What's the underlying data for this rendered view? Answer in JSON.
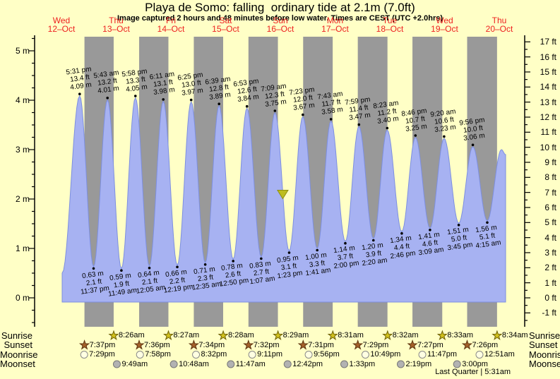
{
  "title": "Playa de Somo: falling  ordinary tide at 2.1m (7.0ft)",
  "subtitle": "Image captured 2 hours and 48 minutes before low water. Times are CEST (UTC +2.0hrs)",
  "colors": {
    "background": "#ffffc6",
    "day_band": "#ffffc6",
    "night_band": "#999999",
    "tide_fill": "#a7b2f2",
    "tide_stroke": "#7d8fe0",
    "day_label_red": "#ee2020",
    "axis": "#000000",
    "marker_fill": "#bdbd1e",
    "marker_stroke": "#8f8f10",
    "sunrise_star_fill": "#d0c01c",
    "sunrise_star_stroke": "#6e6008",
    "sunset_star_fill": "#a4602a",
    "sunset_star_stroke": "#5e3510",
    "moonrise_circle_fill": "#ffffe2",
    "moonrise_circle_stroke": "#8a8a8a",
    "moonset_circle_fill": "#b2b2b2",
    "moonset_circle_stroke": "#787878"
  },
  "days": [
    {
      "day": "Wed",
      "date": "12–Oct"
    },
    {
      "day": "Thu",
      "date": "13–Oct"
    },
    {
      "day": "Fri",
      "date": "14–Oct"
    },
    {
      "day": "Sat",
      "date": "15–Oct"
    },
    {
      "day": "Sun",
      "date": "16–Oct"
    },
    {
      "day": "Mon",
      "date": "17–Oct"
    },
    {
      "day": "Tue",
      "date": "18–Oct"
    },
    {
      "day": "Wed",
      "date": "19–Oct"
    },
    {
      "day": "Thu",
      "date": "20–Oct"
    }
  ],
  "chart_data": {
    "type": "area",
    "title": "Playa de Somo: falling  ordinary tide at 2.1m (7.0ft)",
    "y_axis_left": {
      "unit": "m",
      "major_ticks": [
        0,
        1,
        2,
        3,
        4,
        5
      ],
      "minor_step": 0.25,
      "min": -0.5,
      "max": 5.25
    },
    "y_axis_right": {
      "unit": "ft",
      "major_tick_min": -1,
      "major_tick_max": 17,
      "minor_step": 0.5
    },
    "current_marker": {
      "height_m": 2.1,
      "day": 4,
      "time": "10:35 am"
    },
    "extremes": [
      {
        "kind": "high",
        "day": 0,
        "time": "5:31 pm",
        "height_m": 4.09,
        "ft_label": "13.4 ft",
        "m_label": "4.09 m"
      },
      {
        "kind": "low",
        "day": 0,
        "time": "11:37 pm",
        "height_m": 0.63,
        "ft_label": "2.1 ft",
        "m_label": "0.63 m"
      },
      {
        "kind": "high",
        "day": 1,
        "time": "5:43 am",
        "height_m": 4.01,
        "ft_label": "13.2 ft",
        "m_label": "4.01 m"
      },
      {
        "kind": "low",
        "day": 1,
        "time": "11:49 am",
        "height_m": 0.59,
        "ft_label": "1.9 ft",
        "m_label": "0.59 m"
      },
      {
        "kind": "high",
        "day": 1,
        "time": "5:58 pm",
        "height_m": 4.05,
        "ft_label": "13.3 ft",
        "m_label": "4.05 m"
      },
      {
        "kind": "low",
        "day": 2,
        "time": "12:05 am",
        "height_m": 0.64,
        "ft_label": "2.1 ft",
        "m_label": "0.64 m"
      },
      {
        "kind": "high",
        "day": 2,
        "time": "6:11 am",
        "height_m": 3.98,
        "ft_label": "13.1 ft",
        "m_label": "3.98 m"
      },
      {
        "kind": "low",
        "day": 2,
        "time": "12:19 pm",
        "height_m": 0.66,
        "ft_label": "2.2 ft",
        "m_label": "0.66 m"
      },
      {
        "kind": "high",
        "day": 2,
        "time": "6:25 pm",
        "height_m": 3.97,
        "ft_label": "13.0 ft",
        "m_label": "3.97 m"
      },
      {
        "kind": "low",
        "day": 3,
        "time": "12:35 am",
        "height_m": 0.71,
        "ft_label": "2.3 ft",
        "m_label": "0.71 m"
      },
      {
        "kind": "high",
        "day": 3,
        "time": "6:39 am",
        "height_m": 3.89,
        "ft_label": "12.8 ft",
        "m_label": "3.89 m"
      },
      {
        "kind": "low",
        "day": 3,
        "time": "12:50 pm",
        "height_m": 0.78,
        "ft_label": "2.6 ft",
        "m_label": "0.78 m"
      },
      {
        "kind": "high",
        "day": 3,
        "time": "6:53 pm",
        "height_m": 3.84,
        "ft_label": "12.6 ft",
        "m_label": "3.84 m"
      },
      {
        "kind": "low",
        "day": 4,
        "time": "1:07 am",
        "height_m": 0.83,
        "ft_label": "2.7 ft",
        "m_label": "0.83 m"
      },
      {
        "kind": "high",
        "day": 4,
        "time": "7:09 am",
        "height_m": 3.75,
        "ft_label": "12.3 ft",
        "m_label": "3.75 m"
      },
      {
        "kind": "low",
        "day": 4,
        "time": "1:23 pm",
        "height_m": 0.95,
        "ft_label": "3.1 ft",
        "m_label": "0.95 m"
      },
      {
        "kind": "high",
        "day": 4,
        "time": "7:23 pm",
        "height_m": 3.67,
        "ft_label": "12.0 ft",
        "m_label": "3.67 m"
      },
      {
        "kind": "low",
        "day": 5,
        "time": "1:41 am",
        "height_m": 1.0,
        "ft_label": "3.3 ft",
        "m_label": "1.00 m"
      },
      {
        "kind": "high",
        "day": 5,
        "time": "7:43 am",
        "height_m": 3.58,
        "ft_label": "11.7 ft",
        "m_label": "3.58 m"
      },
      {
        "kind": "low",
        "day": 5,
        "time": "2:00 pm",
        "height_m": 1.14,
        "ft_label": "3.7 ft",
        "m_label": "1.14 m"
      },
      {
        "kind": "high",
        "day": 5,
        "time": "7:59 pm",
        "height_m": 3.47,
        "ft_label": "11.4 ft",
        "m_label": "3.47 m"
      },
      {
        "kind": "low",
        "day": 6,
        "time": "2:20 am",
        "height_m": 1.2,
        "ft_label": "3.9 ft",
        "m_label": "1.20 m"
      },
      {
        "kind": "high",
        "day": 6,
        "time": "8:23 am",
        "height_m": 3.4,
        "ft_label": "11.2 ft",
        "m_label": "3.40 m"
      },
      {
        "kind": "low",
        "day": 6,
        "time": "2:46 pm",
        "height_m": 1.34,
        "ft_label": "4.4 ft",
        "m_label": "1.34 m"
      },
      {
        "kind": "high",
        "day": 6,
        "time": "8:46 pm",
        "height_m": 3.25,
        "ft_label": "10.7 ft",
        "m_label": "3.25 m"
      },
      {
        "kind": "low",
        "day": 7,
        "time": "3:09 am",
        "height_m": 1.41,
        "ft_label": "4.6 ft",
        "m_label": "1.41 m"
      },
      {
        "kind": "high",
        "day": 7,
        "time": "9:20 am",
        "height_m": 3.23,
        "ft_label": "10.6 ft",
        "m_label": "3.23 m"
      },
      {
        "kind": "low",
        "day": 7,
        "time": "3:45 pm",
        "height_m": 1.51,
        "ft_label": "5.0 ft",
        "m_label": "1.51 m"
      },
      {
        "kind": "high",
        "day": 7,
        "time": "9:56 pm",
        "height_m": 3.06,
        "ft_label": "10.0 ft",
        "m_label": "3.06 m"
      },
      {
        "kind": "low",
        "day": 8,
        "time": "4:15 am",
        "height_m": 1.56,
        "ft_label": "5.1 ft",
        "m_label": "1.56 m"
      }
    ]
  },
  "astro": {
    "rows": [
      {
        "label": "Sunrise",
        "icon": "sunrise-star-icon",
        "events": [
          {
            "day": 1,
            "time": "8:26am"
          },
          {
            "day": 2,
            "time": "8:27am"
          },
          {
            "day": 3,
            "time": "8:28am"
          },
          {
            "day": 4,
            "time": "8:29am"
          },
          {
            "day": 5,
            "time": "8:31am"
          },
          {
            "day": 6,
            "time": "8:32am"
          },
          {
            "day": 7,
            "time": "8:33am"
          },
          {
            "day": 8,
            "time": "8:34am"
          }
        ]
      },
      {
        "label": "Sunset",
        "icon": "sunset-star-icon",
        "events": [
          {
            "day": 0,
            "time": "7:37pm"
          },
          {
            "day": 1,
            "time": "7:36pm"
          },
          {
            "day": 2,
            "time": "7:34pm"
          },
          {
            "day": 3,
            "time": "7:32pm"
          },
          {
            "day": 4,
            "time": "7:31pm"
          },
          {
            "day": 5,
            "time": "7:29pm"
          },
          {
            "day": 6,
            "time": "7:27pm"
          },
          {
            "day": 7,
            "time": "7:26pm"
          }
        ]
      },
      {
        "label": "Moonrise",
        "icon": "moonrise-circle-icon",
        "events": [
          {
            "day": 0,
            "time": "7:29pm"
          },
          {
            "day": 1,
            "time": "7:58pm"
          },
          {
            "day": 2,
            "time": "8:32pm"
          },
          {
            "day": 3,
            "time": "9:11pm"
          },
          {
            "day": 4,
            "time": "9:56pm"
          },
          {
            "day": 5,
            "time": "10:49pm"
          },
          {
            "day": 6,
            "time": "11:47pm"
          },
          {
            "day": 8,
            "time": "12:51am"
          }
        ]
      },
      {
        "label": "Moonset",
        "icon": "moonset-circle-icon",
        "events": [
          {
            "day": 1,
            "time": "9:49am"
          },
          {
            "day": 2,
            "time": "10:48am"
          },
          {
            "day": 3,
            "time": "11:47am"
          },
          {
            "day": 4,
            "time": "12:42pm"
          },
          {
            "day": 5,
            "time": "1:33pm"
          },
          {
            "day": 6,
            "time": "2:19pm"
          },
          {
            "day": 7,
            "time": "3:00pm"
          }
        ]
      }
    ],
    "footnote": "Last Quarter | 5:31am"
  }
}
